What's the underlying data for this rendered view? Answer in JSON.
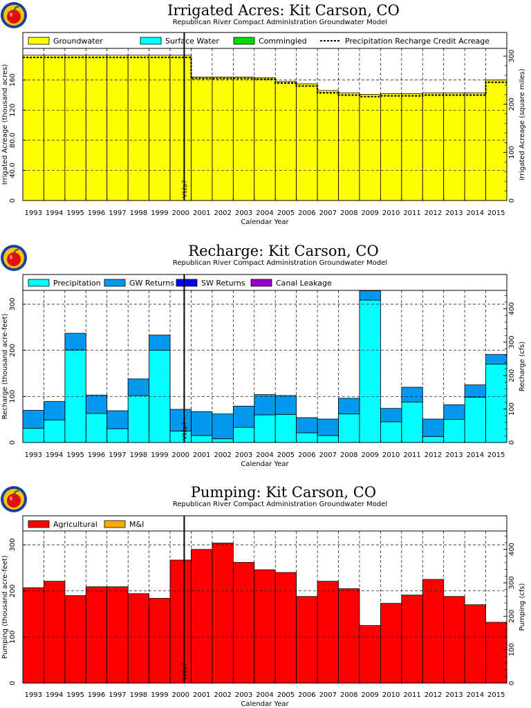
{
  "chart_data": [
    {
      "type": "bar",
      "title": "Irrigated Acres: Kit Carson, CO",
      "subtitle": "Republican River Compact Administration Groundwater Model",
      "xlabel": "Calendar Year",
      "ylabel": "Irrigated Acreage (thousand acres)",
      "y2label": "Irrigated Acreage (square miles)",
      "categories": [
        "1993",
        "1994",
        "1995",
        "1996",
        "1997",
        "1998",
        "1999",
        "2000",
        "2001",
        "2002",
        "2003",
        "2004",
        "2005",
        "2006",
        "2007",
        "2008",
        "2009",
        "2010",
        "2011",
        "2012",
        "2013",
        "2014",
        "2015"
      ],
      "ylim": [
        0,
        202
      ],
      "yticks": [
        0,
        40,
        80,
        120,
        160
      ],
      "ytick_labels": [
        "0",
        "40.0",
        "80.0",
        "120",
        "160"
      ],
      "y2lim": [
        0,
        316
      ],
      "y2ticks": [
        0,
        100,
        200,
        300
      ],
      "stacked": true,
      "series": [
        {
          "name": "Groundwater",
          "color": "#ffff00",
          "values": [
            193,
            193,
            193,
            193,
            193,
            193,
            193,
            193,
            164,
            164,
            164,
            163,
            158,
            155,
            146,
            143,
            141,
            142,
            142,
            143,
            143,
            143,
            160
          ]
        },
        {
          "name": "Surface Water",
          "color": "#00ffff",
          "values": [
            0,
            0,
            0,
            0,
            0,
            0,
            0,
            0,
            0,
            0,
            0,
            0,
            0,
            0,
            0,
            0,
            0,
            0,
            0,
            0,
            0,
            0,
            0
          ]
        },
        {
          "name": "Commingled",
          "color": "#00dd00",
          "values": [
            0,
            0,
            0,
            0,
            0,
            0,
            0,
            0,
            0,
            0,
            0,
            0,
            0,
            0,
            0,
            0,
            0,
            0,
            0,
            0,
            0,
            0,
            0
          ]
        }
      ],
      "line_series": {
        "name": "Precipitation Recharge Credit Acreage",
        "style": "dotted",
        "values": [
          190,
          190,
          190,
          190,
          190,
          190,
          190,
          190,
          162,
          162,
          162,
          161,
          156,
          152,
          143,
          140,
          138,
          139,
          139,
          140,
          140,
          140,
          157
        ]
      },
      "vline": {
        "x": 7.67,
        "label": "V12p7"
      },
      "legend_placement": "top",
      "grid": true
    },
    {
      "type": "bar",
      "title": "Recharge: Kit Carson, CO",
      "subtitle": "Republican River Compact Administration Groundwater Model",
      "xlabel": "Calendar Year",
      "ylabel": "Recharge (thousand acre-feet)",
      "y2label": "Recharge (cfs)",
      "categories": [
        "1993",
        "1994",
        "1995",
        "1996",
        "1997",
        "1998",
        "1999",
        "2000",
        "2001",
        "2002",
        "2003",
        "2004",
        "2005",
        "2006",
        "2007",
        "2008",
        "2009",
        "2010",
        "2011",
        "2012",
        "2013",
        "2014",
        "2015"
      ],
      "ylim": [
        0,
        330
      ],
      "yticks": [
        0,
        100,
        200,
        300
      ],
      "ytick_labels": [
        "0",
        "100",
        "200",
        "300"
      ],
      "y2lim": [
        0,
        455
      ],
      "y2ticks": [
        0,
        100,
        200,
        300,
        400
      ],
      "stacked": true,
      "series": [
        {
          "name": "Precipitation",
          "color": "#00ffff",
          "values": [
            31,
            49,
            201,
            63,
            30,
            102,
            200,
            25,
            15,
            8,
            33,
            60,
            61,
            21,
            15,
            62,
            309,
            45,
            88,
            13,
            50,
            98,
            170
          ]
        },
        {
          "name": "GW Returns",
          "color": "#0099ee",
          "values": [
            39,
            40,
            36,
            40,
            39,
            36,
            33,
            47,
            52,
            54,
            46,
            44,
            41,
            33,
            36,
            34,
            20,
            29,
            32,
            38,
            32,
            27,
            21
          ]
        },
        {
          "name": "SW Returns",
          "color": "#0000ff",
          "values": [
            0,
            0,
            0,
            0,
            0,
            0,
            0,
            0,
            0,
            0,
            0,
            0,
            0,
            0,
            0,
            0,
            0,
            0,
            0,
            0,
            0,
            0,
            0
          ]
        },
        {
          "name": "Canal Leakage",
          "color": "#9900cc",
          "values": [
            0,
            0,
            0,
            0,
            0,
            0,
            0,
            0,
            0,
            0,
            0,
            0,
            0,
            0,
            0,
            0,
            0,
            0,
            0,
            0,
            0,
            0,
            0
          ]
        }
      ],
      "vline": {
        "x": 7.67,
        "label": "V12p7"
      },
      "legend_placement": "top",
      "grid": true
    },
    {
      "type": "bar",
      "title": "Pumping: Kit Carson, CO",
      "subtitle": "Republican River Compact Administration Groundwater Model",
      "xlabel": "Calendar Year",
      "ylabel": "Pumping (thousand acre-feet)",
      "y2label": "Pumping (cfs)",
      "categories": [
        "1993",
        "1994",
        "1995",
        "1996",
        "1997",
        "1998",
        "1999",
        "2000",
        "2001",
        "2002",
        "2003",
        "2004",
        "2005",
        "2006",
        "2007",
        "2008",
        "2009",
        "2010",
        "2011",
        "2012",
        "2013",
        "2014",
        "2015"
      ],
      "ylim": [
        0,
        330
      ],
      "yticks": [
        0,
        100,
        200,
        300
      ],
      "ytick_labels": [
        "0",
        "100",
        "200",
        "300"
      ],
      "y2lim": [
        0,
        455
      ],
      "y2ticks": [
        0,
        100,
        200,
        300,
        400
      ],
      "stacked": true,
      "series": [
        {
          "name": "Agricultural",
          "color": "#ff0000",
          "values": [
            207,
            221,
            190,
            209,
            209,
            194,
            184,
            267,
            290,
            304,
            262,
            246,
            240,
            188,
            221,
            205,
            125,
            173,
            191,
            225,
            188,
            170,
            132
          ]
        },
        {
          "name": "M&I",
          "color": "#ffaa00",
          "values": [
            0,
            0,
            0,
            0,
            0,
            0,
            0,
            0,
            0,
            0,
            0,
            0,
            0,
            0,
            0,
            0,
            0,
            0,
            0,
            0,
            0,
            0,
            0
          ]
        }
      ],
      "vline": {
        "x": 7.67,
        "label": "V12p7"
      },
      "legend_placement": "top",
      "grid": true
    }
  ]
}
